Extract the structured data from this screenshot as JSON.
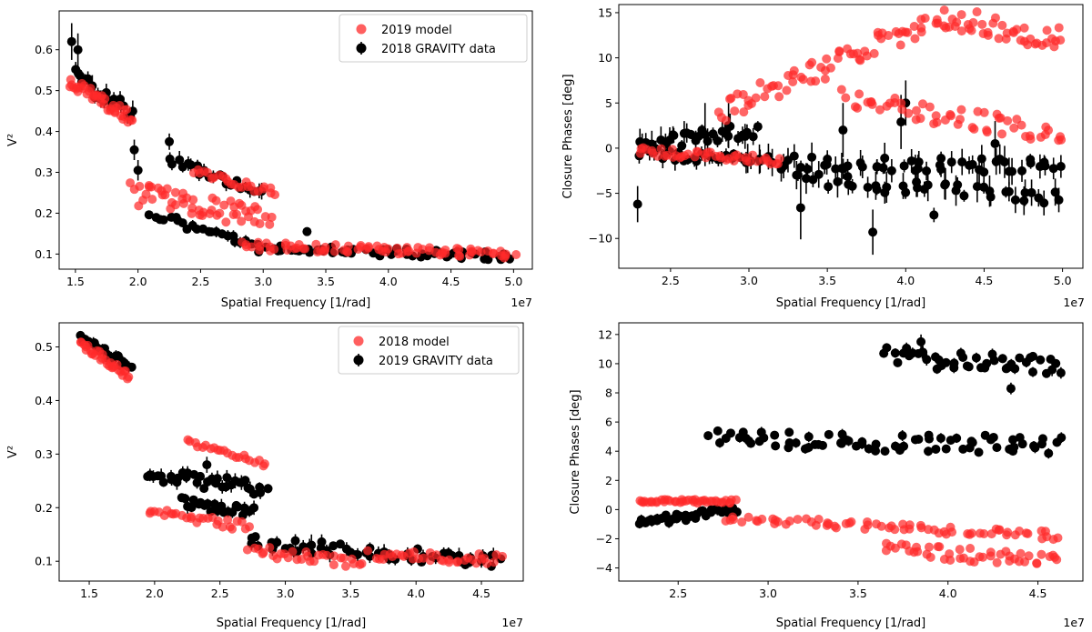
{
  "colors": {
    "model": "#ff2a2a",
    "data": "#000000"
  },
  "chart_data": [
    {
      "id": "v2-2018",
      "type": "scatter",
      "xlabel": "Spatial Frequency [1/rad]",
      "ylabel": "V²",
      "x_offset_label": "1e7",
      "xlim": [
        1.37,
        5.15
      ],
      "ylim": [
        0.063,
        0.695
      ],
      "xticks": [
        1.5,
        2.0,
        2.5,
        3.0,
        3.5,
        4.0,
        4.5,
        5.0
      ],
      "xtick_labels": [
        "1.5",
        "2.0",
        "2.5",
        "3.0",
        "3.5",
        "4.0",
        "4.5",
        "5.0"
      ],
      "yticks": [
        0.1,
        0.2,
        0.3,
        0.4,
        0.5,
        0.6
      ],
      "ytick_labels": [
        "0.1",
        "0.2",
        "0.3",
        "0.4",
        "0.5",
        "0.6"
      ],
      "legend": {
        "placement": "top-right",
        "entries": [
          "2019 model",
          "2018 GRAVITY data"
        ]
      },
      "series": [
        {
          "name": "2018 GRAVITY data",
          "kind": "data",
          "groups": [
            {
              "x": [
                1.5,
                1.95
              ],
              "y": [
                0.53,
                0.45
              ],
              "n": 24,
              "spread": 0.045,
              "err": 0.018
            },
            {
              "x": [
                2.25,
                3.0
              ],
              "y": [
                0.33,
                0.25
              ],
              "n": 22,
              "spread": 0.02,
              "err": 0.015
            },
            {
              "x": [
                2.1,
                2.9
              ],
              "y": [
                0.2,
                0.12
              ],
              "n": 22,
              "spread": 0.02,
              "err": 0.01
            },
            {
              "x": [
                2.95,
                5.0
              ],
              "y": [
                0.115,
                0.095
              ],
              "n": 60,
              "spread": 0.02,
              "err": 0.006
            }
          ],
          "points": [
            {
              "x": 1.47,
              "y": 0.62,
              "err": 0.045
            },
            {
              "x": 1.52,
              "y": 0.6,
              "err": 0.04
            },
            {
              "x": 1.97,
              "y": 0.355,
              "err": 0.025
            },
            {
              "x": 2.0,
              "y": 0.305,
              "err": 0.025
            },
            {
              "x": 2.25,
              "y": 0.375,
              "err": 0.02
            },
            {
              "x": 3.35,
              "y": 0.155,
              "err": 0.01
            }
          ]
        },
        {
          "name": "2019 model",
          "kind": "model",
          "groups": [
            {
              "x": [
                1.45,
                1.95
              ],
              "y": [
                0.52,
                0.43
              ],
              "n": 40,
              "spread": 0.035
            },
            {
              "x": [
                1.95,
                3.05
              ],
              "y": [
                0.245,
                0.19
              ],
              "n": 55,
              "spread": 0.06
            },
            {
              "x": [
                2.45,
                3.1
              ],
              "y": [
                0.3,
                0.25
              ],
              "n": 25,
              "spread": 0.02
            },
            {
              "x": [
                2.85,
                5.0
              ],
              "y": [
                0.12,
                0.1
              ],
              "n": 80,
              "spread": 0.02
            }
          ],
          "points": []
        }
      ]
    },
    {
      "id": "cp-2018",
      "type": "scatter",
      "xlabel": "Spatial Frequency [1/rad]",
      "ylabel": "Closure Phases [deg]",
      "x_offset_label": "1e7",
      "xlim": [
        2.17,
        5.13
      ],
      "ylim": [
        -13.3,
        15.9
      ],
      "xticks": [
        2.5,
        3.0,
        3.5,
        4.0,
        4.5,
        5.0
      ],
      "xtick_labels": [
        "2.5",
        "3.0",
        "3.5",
        "4.0",
        "4.5",
        "5.0"
      ],
      "yticks": [
        -10,
        -5,
        0,
        5,
        10,
        15
      ],
      "ytick_labels": [
        "−10",
        "−5",
        "0",
        "5",
        "10",
        "15"
      ],
      "legend": null,
      "series": [
        {
          "name": "2018 GRAVITY data",
          "kind": "data",
          "groups": [
            {
              "x": [
                2.3,
                3.05
              ],
              "y": [
                0.2,
                2.0
              ],
              "n": 30,
              "spread": 1.8,
              "err": 1.0
            },
            {
              "x": [
                2.3,
                3.0
              ],
              "y": [
                -0.5,
                -1.3
              ],
              "n": 25,
              "spread": 1.2,
              "err": 0.8
            },
            {
              "x": [
                3.0,
                5.0
              ],
              "y": [
                -1.5,
                -2.0
              ],
              "n": 55,
              "spread": 1.6,
              "err": 1.2
            },
            {
              "x": [
                3.3,
                5.0
              ],
              "y": [
                -3.5,
                -5.5
              ],
              "n": 40,
              "spread": 1.6,
              "err": 1.2
            }
          ],
          "points": [
            {
              "x": 2.29,
              "y": -6.2,
              "err": 2.0
            },
            {
              "x": 2.72,
              "y": 1.5,
              "err": 3.5
            },
            {
              "x": 2.87,
              "y": 2.5,
              "err": 2.5
            },
            {
              "x": 3.33,
              "y": -6.6,
              "err": 3.5
            },
            {
              "x": 3.6,
              "y": 2.0,
              "err": 3.0
            },
            {
              "x": 3.79,
              "y": -9.3,
              "err": 2.5
            },
            {
              "x": 3.97,
              "y": 2.9,
              "err": 3.0
            },
            {
              "x": 4.18,
              "y": -7.4,
              "err": 0.8
            },
            {
              "x": 4.0,
              "y": 5.0,
              "err": 2.5
            },
            {
              "x": 4.57,
              "y": 0.5,
              "err": 2.5
            }
          ]
        },
        {
          "name": "2019 model",
          "kind": "model",
          "groups": [
            {
              "x": [
                2.3,
                3.2
              ],
              "y": [
                -0.3,
                -1.4
              ],
              "n": 45,
              "spread": 0.9
            },
            {
              "x": [
                2.8,
                4.25
              ],
              "y": [
                4.0,
                14.5
              ],
              "n": 70,
              "spread": 2.6
            },
            {
              "x": [
                4.25,
                5.0
              ],
              "y": [
                14.5,
                12.0
              ],
              "n": 40,
              "spread": 2.6
            },
            {
              "x": [
                3.6,
                5.0
              ],
              "y": [
                5.5,
                1.5
              ],
              "n": 55,
              "spread": 2.2
            }
          ],
          "points": []
        }
      ]
    },
    {
      "id": "v2-2019",
      "type": "scatter",
      "xlabel": "Spatial Frequency [1/rad]",
      "ylabel": "V²",
      "x_offset_label": "1e7",
      "xlim": [
        1.27,
        4.82
      ],
      "ylim": [
        0.063,
        0.545
      ],
      "xticks": [
        1.5,
        2.0,
        2.5,
        3.0,
        3.5,
        4.0,
        4.5
      ],
      "xtick_labels": [
        "1.5",
        "2.0",
        "2.5",
        "3.0",
        "3.5",
        "4.0",
        "4.5"
      ],
      "yticks": [
        0.1,
        0.2,
        0.3,
        0.4,
        0.5
      ],
      "ytick_labels": [
        "0.1",
        "0.2",
        "0.3",
        "0.4",
        "0.5"
      ],
      "legend": {
        "placement": "top-right",
        "entries": [
          "2018 model",
          "2019 GRAVITY data"
        ]
      },
      "series": [
        {
          "name": "2019 GRAVITY data",
          "kind": "data",
          "groups": [
            {
              "x": [
                1.43,
                1.82
              ],
              "y": [
                0.52,
                0.46
              ],
              "n": 28,
              "spread": 0.018,
              "err": 0.008
            },
            {
              "x": [
                1.95,
                2.85
              ],
              "y": [
                0.26,
                0.235
              ],
              "n": 35,
              "spread": 0.028,
              "err": 0.01
            },
            {
              "x": [
                2.2,
                2.75
              ],
              "y": [
                0.21,
                0.19
              ],
              "n": 22,
              "spread": 0.02,
              "err": 0.01
            },
            {
              "x": [
                2.72,
                4.65
              ],
              "y": [
                0.135,
                0.1
              ],
              "n": 55,
              "spread": 0.025,
              "err": 0.01
            }
          ],
          "points": [
            {
              "x": 2.4,
              "y": 0.28,
              "err": 0.015
            },
            {
              "x": 3.2,
              "y": 0.13,
              "err": 0.02
            }
          ]
        },
        {
          "name": "2018 model",
          "kind": "model",
          "groups": [
            {
              "x": [
                1.43,
                1.8
              ],
              "y": [
                0.51,
                0.445
              ],
              "n": 30,
              "spread": 0.015
            },
            {
              "x": [
                2.25,
                2.85
              ],
              "y": [
                0.325,
                0.28
              ],
              "n": 22,
              "spread": 0.01
            },
            {
              "x": [
                1.95,
                2.72
              ],
              "y": [
                0.195,
                0.165
              ],
              "n": 28,
              "spread": 0.02
            },
            {
              "x": [
                2.72,
                3.6
              ],
              "y": [
                0.12,
                0.095
              ],
              "n": 30,
              "spread": 0.02
            },
            {
              "x": [
                3.65,
                4.65
              ],
              "y": [
                0.11,
                0.105
              ],
              "n": 35,
              "spread": 0.02
            }
          ],
          "points": []
        }
      ]
    },
    {
      "id": "cp-2019",
      "type": "scatter",
      "xlabel": "Spatial Frequency [1/rad]",
      "ylabel": "Closure Phases [deg]",
      "x_offset_label": "1e7",
      "xlim": [
        2.17,
        4.75
      ],
      "ylim": [
        -4.9,
        12.8
      ],
      "xticks": [
        2.5,
        3.0,
        3.5,
        4.0,
        4.5
      ],
      "xtick_labels": [
        "2.5",
        "3.0",
        "3.5",
        "4.0",
        "4.5"
      ],
      "yticks": [
        -4,
        -2,
        0,
        2,
        4,
        6,
        8,
        10,
        12
      ],
      "ytick_labels": [
        "−4",
        "−2",
        "0",
        "2",
        "4",
        "6",
        "8",
        "10",
        "12"
      ],
      "legend": null,
      "series": [
        {
          "name": "2019 GRAVITY data",
          "kind": "data",
          "groups": [
            {
              "x": [
                2.28,
                2.82
              ],
              "y": [
                -0.9,
                0.0
              ],
              "n": 35,
              "spread": 0.6,
              "err": 0.25
            },
            {
              "x": [
                2.7,
                4.62
              ],
              "y": [
                4.8,
                4.4
              ],
              "n": 75,
              "spread": 1.2,
              "err": 0.25
            },
            {
              "x": [
                3.65,
                4.62
              ],
              "y": [
                10.5,
                9.8
              ],
              "n": 45,
              "spread": 1.4,
              "err": 0.3
            }
          ],
          "points": [
            {
              "x": 3.85,
              "y": 11.5,
              "err": 0.5
            },
            {
              "x": 4.35,
              "y": 8.3,
              "err": 0.4
            }
          ]
        },
        {
          "name": "2018 model",
          "kind": "model",
          "groups": [
            {
              "x": [
                2.28,
                2.82
              ],
              "y": [
                0.6,
                0.55
              ],
              "n": 40,
              "spread": 0.25
            },
            {
              "x": [
                2.75,
                4.62
              ],
              "y": [
                -0.6,
                -1.8
              ],
              "n": 70,
              "spread": 0.55
            },
            {
              "x": [
                3.65,
                4.62
              ],
              "y": [
                -2.7,
                -3.6
              ],
              "n": 45,
              "spread": 1.0
            }
          ],
          "points": []
        }
      ]
    }
  ]
}
